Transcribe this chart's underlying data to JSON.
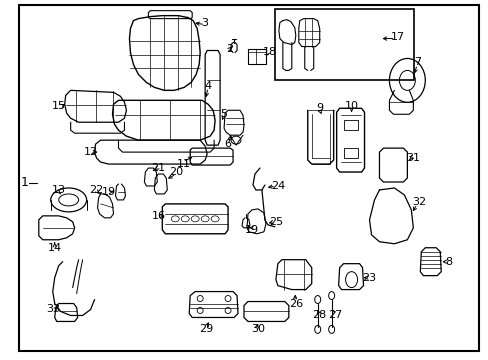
{
  "background_color": "#ffffff",
  "border_color": "#000000",
  "figsize": [
    4.89,
    3.6
  ],
  "dpi": 100
}
